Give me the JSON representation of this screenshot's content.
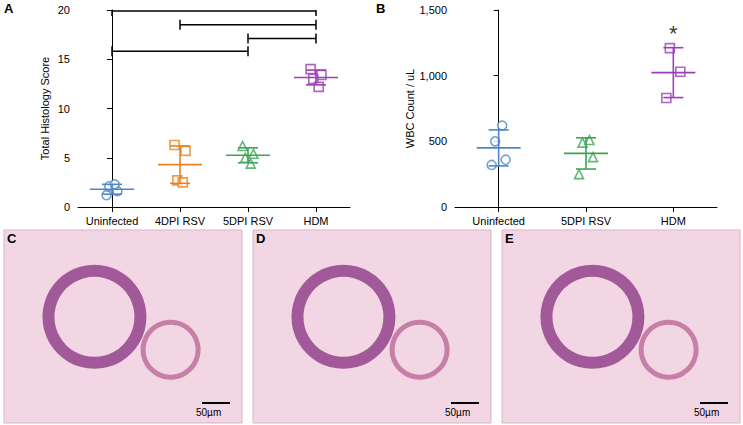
{
  "chart_data": [
    {
      "panel": "A",
      "type": "scatter",
      "y_label": "Total Histology Score",
      "ylim": [
        0,
        20
      ],
      "yticks": [
        0,
        5,
        10,
        15,
        20
      ],
      "groups": [
        {
          "category": "Uninfected",
          "color": "#4f86c6",
          "marker": "circle",
          "values": [
            1.2,
            1.6,
            2.1,
            2.3
          ],
          "mean": 1.8,
          "sd": 0.5
        },
        {
          "category": "4DPI RSV",
          "color": "#e8821e",
          "marker": "square",
          "values": [
            6.3,
            5.7,
            2.7,
            2.5
          ],
          "mean": 4.3,
          "sd": 1.9
        },
        {
          "category": "5DPI RSV",
          "color": "#3aa655",
          "marker": "triangle",
          "values": [
            6.2,
            5.4,
            5.0,
            4.4
          ],
          "mean": 5.25,
          "sd": 0.76
        },
        {
          "category": "HDM",
          "color": "#9b3fb5",
          "marker": "square",
          "values": [
            14.0,
            13.4,
            13.0,
            12.2
          ],
          "mean": 13.15,
          "sd": 0.75
        }
      ],
      "comparisons": [
        {
          "from": "Uninfected",
          "to": "HDM",
          "y": 19.9
        },
        {
          "from": "4DPI RSV",
          "to": "HDM",
          "y": 18.5
        },
        {
          "from": "5DPI RSV",
          "to": "HDM",
          "y": 17.1
        },
        {
          "from": "Uninfected",
          "to": "5DPI RSV",
          "y": 15.8
        }
      ]
    },
    {
      "panel": "B",
      "type": "scatter",
      "y_label": "WBC Count / uL",
      "ylim": [
        0,
        1500
      ],
      "yticks": [
        0,
        500,
        1000,
        1500
      ],
      "groups": [
        {
          "category": "Uninfected",
          "color": "#4f86c6",
          "marker": "circle",
          "values": [
            320,
            360,
            500,
            620
          ],
          "mean": 450,
          "sd": 137
        },
        {
          "category": "5DPI RSV",
          "color": "#3aa655",
          "marker": "triangle",
          "values": [
            250,
            380,
            490,
            510
          ],
          "mean": 408,
          "sd": 119
        },
        {
          "category": "HDM",
          "color": "#9b3fb5",
          "marker": "square",
          "values": [
            830,
            1030,
            1210
          ],
          "mean": 1023,
          "sd": 190
        }
      ],
      "annotations": [
        {
          "text": "*",
          "category": "HDM",
          "y": 1320
        }
      ]
    }
  ],
  "panels": [
    {
      "label": "C",
      "scale_bar": "50µm"
    },
    {
      "label": "D",
      "scale_bar": "50µm"
    },
    {
      "label": "E",
      "scale_bar": "50µm"
    }
  ]
}
